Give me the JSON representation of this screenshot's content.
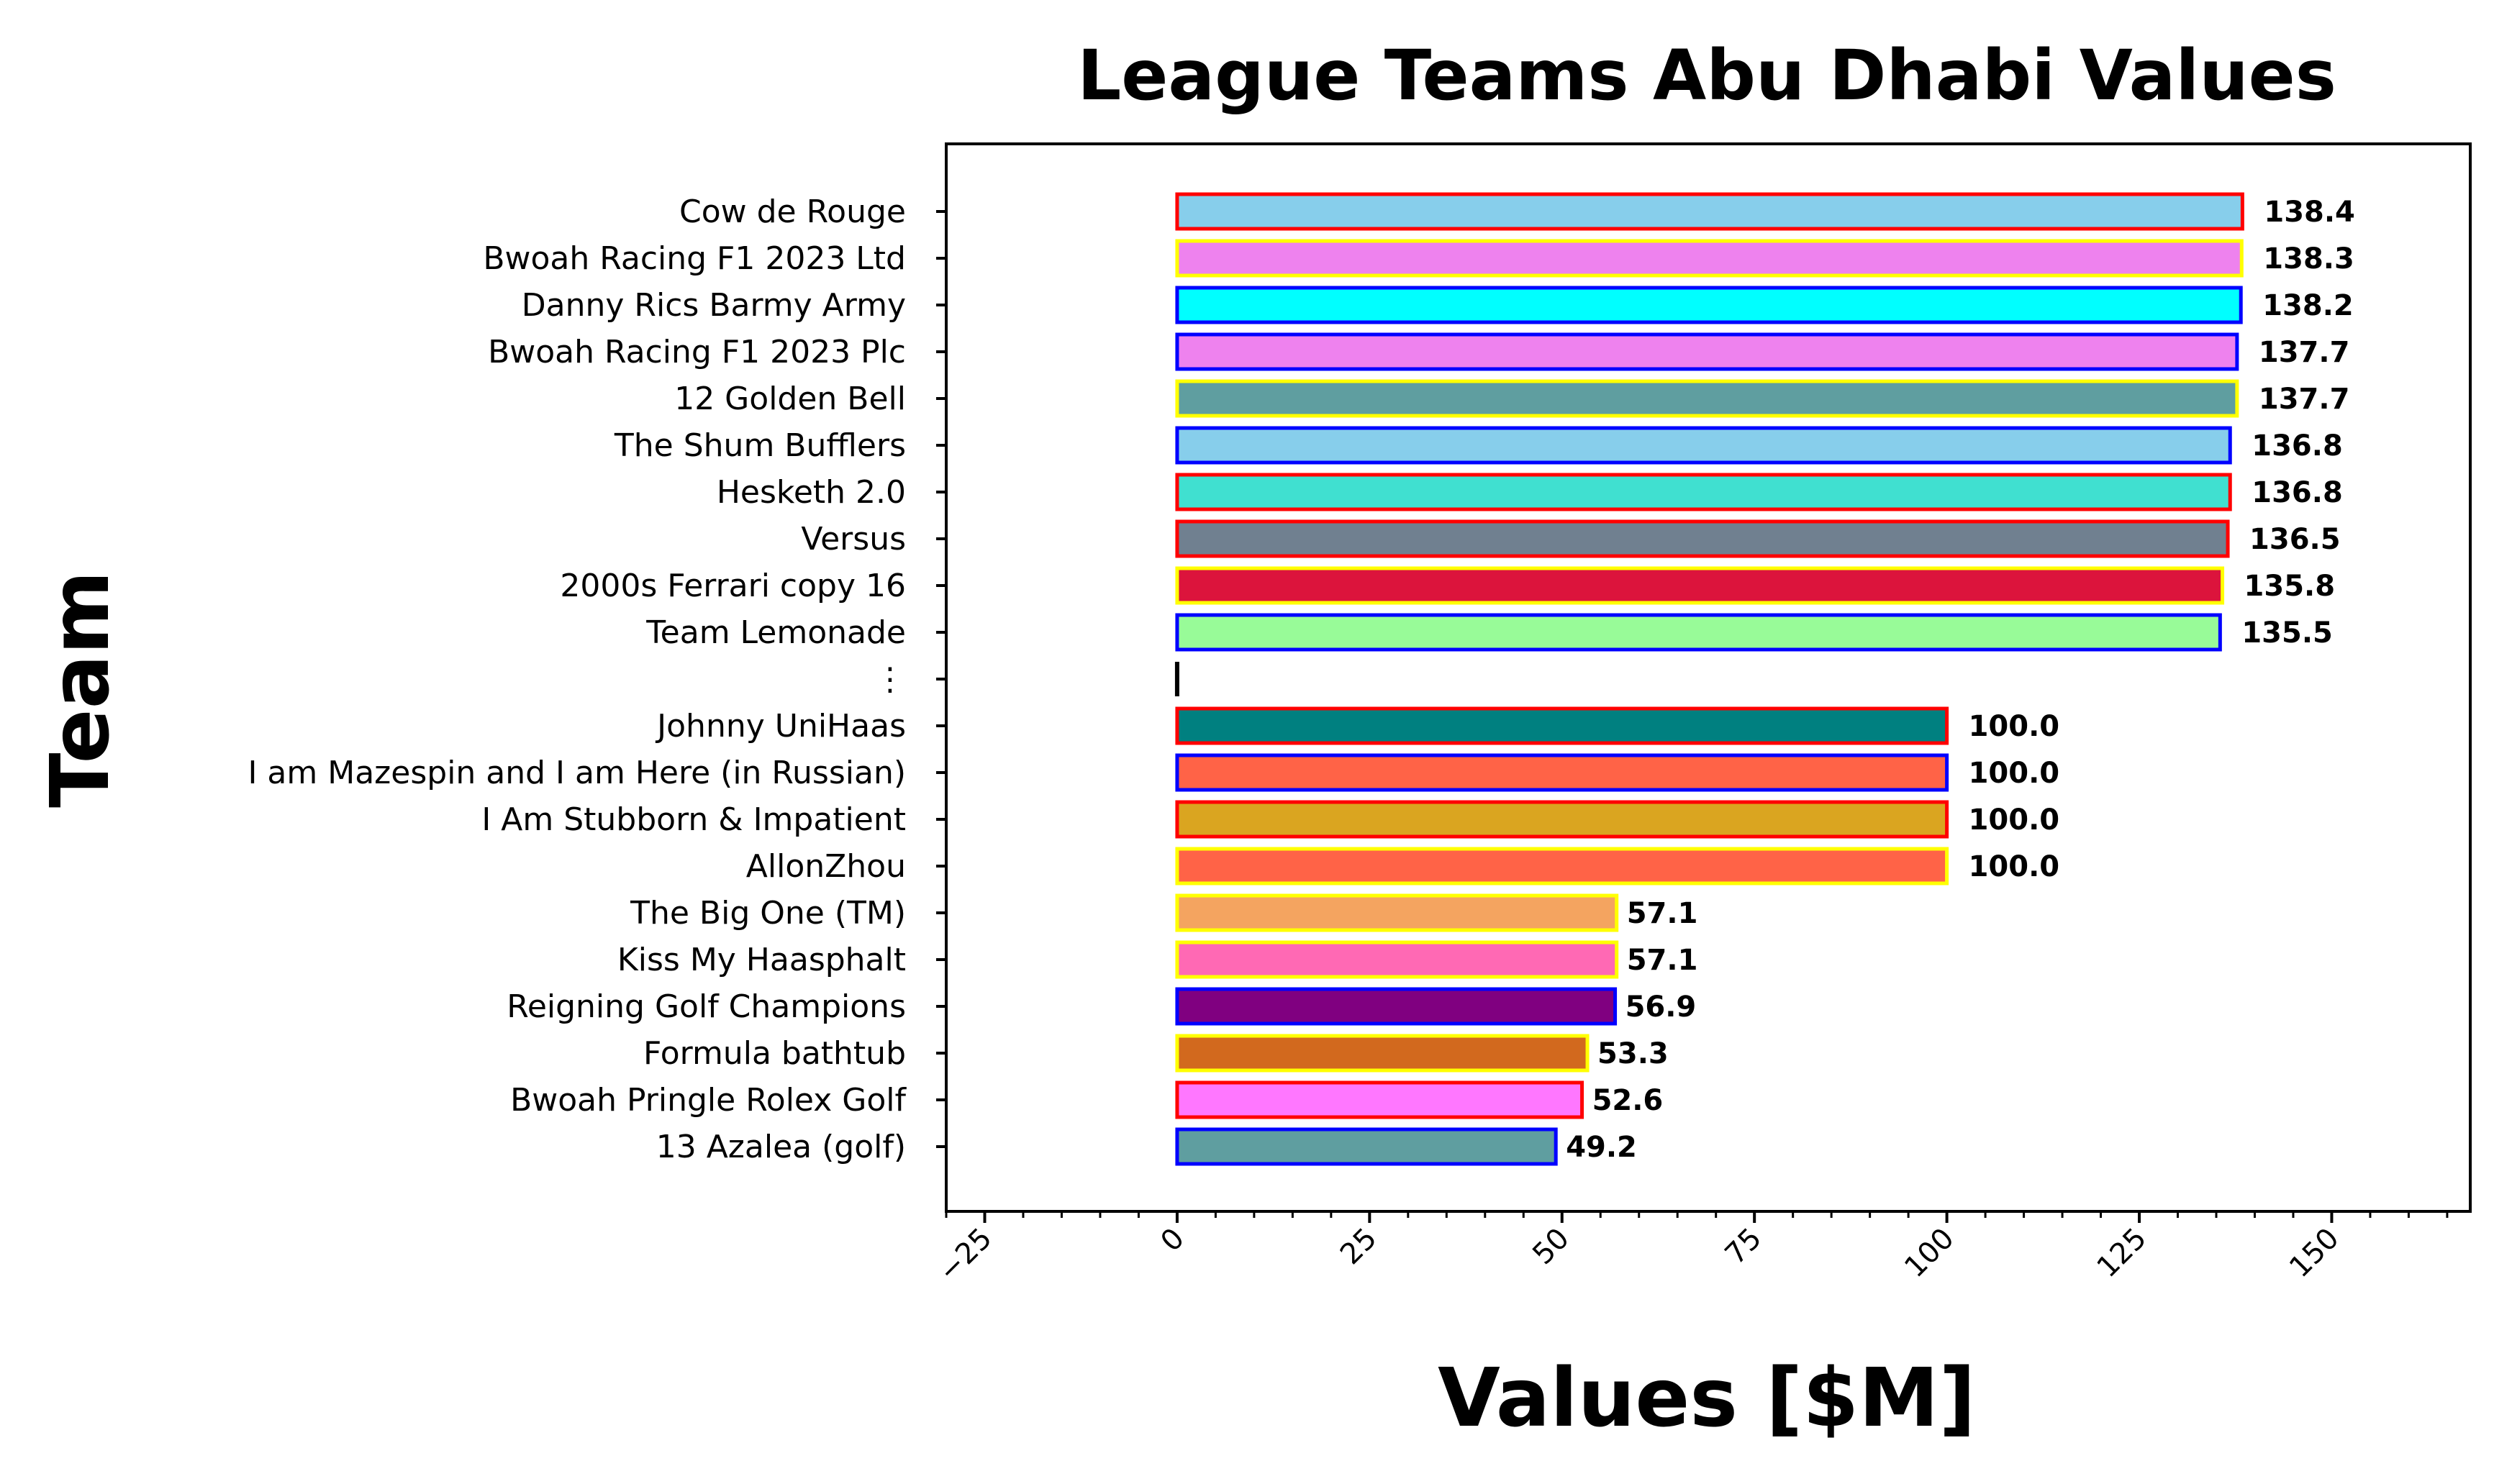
{
  "chart_data": {
    "type": "bar",
    "orientation": "horizontal",
    "title": "League Teams Abu Dhabi Values",
    "xlabel": "Values [$M]",
    "ylabel": "Team",
    "xlim": [
      -30,
      168
    ],
    "xticks": [
      "−25",
      "0",
      "25",
      "50",
      "75",
      "100",
      "125",
      "150"
    ],
    "xtick_values": [
      -25,
      0,
      25,
      50,
      75,
      100,
      125,
      150
    ],
    "grid": false,
    "categories": [
      "Cow de Rouge",
      "Bwoah Racing F1 2023 Ltd",
      "Danny Rics Barmy Army",
      "Bwoah Racing F1 2023 Plc",
      "12 Golden Bell",
      "The Shum Bufflers",
      "Hesketh 2.0",
      "Versus",
      "2000s Ferrari copy 16",
      "Team Lemonade",
      "⋮",
      "Johnny UniHaas",
      "I am Mazespin and I am Here (in Russian)",
      "I Am Stubborn & Impatient",
      "AllonZhou",
      "The Big One (TM)",
      "Kiss My Haasphalt",
      "Reigning Golf Champions",
      "Formula bathtub",
      "Bwoah Pringle Rolex Golf",
      "13 Azalea (golf)"
    ],
    "values": [
      138.4,
      138.3,
      138.2,
      137.7,
      137.7,
      136.8,
      136.8,
      136.5,
      135.8,
      135.5,
      null,
      100.0,
      100.0,
      100.0,
      100.0,
      57.1,
      57.1,
      56.9,
      53.3,
      52.6,
      49.2
    ],
    "value_labels": [
      "138.4",
      "138.3",
      "138.2",
      "137.7",
      "137.7",
      "136.8",
      "136.8",
      "136.5",
      "135.8",
      "135.5",
      "",
      "100.0",
      "100.0",
      "100.0",
      "100.0",
      "57.1",
      "57.1",
      "56.9",
      "53.3",
      "52.6",
      "49.2"
    ],
    "fill_colors": [
      "#87ceeb",
      "#ee82ee",
      "#00ffff",
      "#ee82ee",
      "#5f9ea0",
      "#87ceeb",
      "#40e0d0",
      "#708090",
      "#dc143c",
      "#98fb98",
      "",
      "#008080",
      "#ff6347",
      "#daa520",
      "#ff6347",
      "#f4a460",
      "#ff69b4",
      "#800080",
      "#d2691e",
      "#ff77ff",
      "#5f9ea0"
    ],
    "edge_colors": [
      "#ff0000",
      "#ffff00",
      "#0000ff",
      "#0000ff",
      "#ffff00",
      "#0000ff",
      "#ff0000",
      "#ff0000",
      "#ffff00",
      "#0000ff",
      "",
      "#ff0000",
      "#0000ff",
      "#ff0000",
      "#ffff00",
      "#ffff00",
      "#ffff00",
      "#0000ff",
      "#ffff00",
      "#ff0000",
      "#0000ff"
    ]
  }
}
